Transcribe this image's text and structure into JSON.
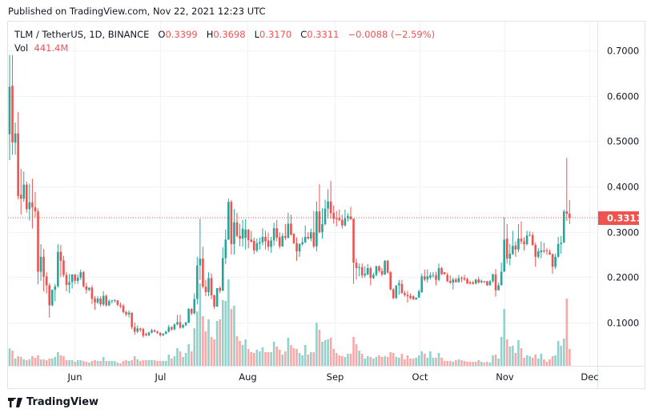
{
  "published": "Published on TradingView.com, Nov 22, 2021 12:23 UTC",
  "legend": {
    "symbol": "TLM / TetherUS, 1D, BINANCE",
    "o_label": "O",
    "o": "0.3399",
    "h_label": "H",
    "h": "0.3698",
    "l_label": "L",
    "l": "0.3170",
    "c_label": "C",
    "c": "0.3311",
    "change": "−0.0088 (−2.59%)",
    "vol_label": "Vol",
    "vol": "441.4M"
  },
  "footer": {
    "brand": "TradingView"
  },
  "colors": {
    "up": "#26a69a",
    "down": "#ef5350",
    "up_volume": "#93d2cc",
    "down_volume": "#f7a9a7",
    "grid": "#f0f3fa",
    "last_price": "#ef5350"
  },
  "chart_data": {
    "type": "candlestick",
    "symbol": "TLM / TetherUS",
    "interval": "1D",
    "ylim": [
      0.03,
      0.76
    ],
    "y_ticks": [
      "0.7000",
      "0.6000",
      "0.5000",
      "0.4000",
      "0.3000",
      "0.2000",
      "0.1000"
    ],
    "y_tick_values": [
      0.7,
      0.6,
      0.5,
      0.4,
      0.3,
      0.2,
      0.1
    ],
    "x_ticks": [
      "Jun",
      "Jul",
      "Aug",
      "Sep",
      "Oct",
      "Nov",
      "Dec"
    ],
    "last_price": 0.3311,
    "last_price_label": "0.3311",
    "grid": true,
    "candle_fields": [
      "open",
      "high",
      "low",
      "close",
      "volume_M"
    ],
    "candles": [
      [
        0.515,
        0.69,
        0.458,
        0.62,
        456
      ],
      [
        0.622,
        0.69,
        0.47,
        0.497,
        399
      ],
      [
        0.497,
        0.541,
        0.47,
        0.517,
        189
      ],
      [
        0.517,
        0.564,
        0.372,
        0.379,
        252
      ],
      [
        0.382,
        0.439,
        0.338,
        0.373,
        231
      ],
      [
        0.373,
        0.433,
        0.366,
        0.404,
        168
      ],
      [
        0.404,
        0.411,
        0.342,
        0.35,
        147
      ],
      [
        0.35,
        0.406,
        0.325,
        0.365,
        168
      ],
      [
        0.365,
        0.417,
        0.307,
        0.354,
        252
      ],
      [
        0.354,
        0.388,
        0.332,
        0.345,
        210
      ],
      [
        0.345,
        0.352,
        0.184,
        0.212,
        273
      ],
      [
        0.212,
        0.273,
        0.192,
        0.245,
        168
      ],
      [
        0.245,
        0.262,
        0.169,
        0.201,
        168
      ],
      [
        0.202,
        0.211,
        0.164,
        0.182,
        147
      ],
      [
        0.182,
        0.187,
        0.111,
        0.138,
        189
      ],
      [
        0.138,
        0.173,
        0.136,
        0.172,
        189
      ],
      [
        0.172,
        0.185,
        0.147,
        0.18,
        231
      ],
      [
        0.18,
        0.273,
        0.177,
        0.256,
        357
      ],
      [
        0.256,
        0.271,
        0.2,
        0.236,
        273
      ],
      [
        0.237,
        0.247,
        0.2,
        0.205,
        252
      ],
      [
        0.205,
        0.211,
        0.169,
        0.183,
        147
      ],
      [
        0.183,
        0.207,
        0.165,
        0.189,
        147
      ],
      [
        0.189,
        0.207,
        0.175,
        0.206,
        147
      ],
      [
        0.206,
        0.207,
        0.185,
        0.192,
        105
      ],
      [
        0.192,
        0.206,
        0.185,
        0.199,
        147
      ],
      [
        0.199,
        0.217,
        0.194,
        0.211,
        147
      ],
      [
        0.211,
        0.214,
        0.177,
        0.18,
        126
      ],
      [
        0.18,
        0.188,
        0.164,
        0.172,
        105
      ],
      [
        0.172,
        0.177,
        0.169,
        0.177,
        84
      ],
      [
        0.177,
        0.182,
        0.141,
        0.152,
        126
      ],
      [
        0.153,
        0.158,
        0.128,
        0.144,
        147
      ],
      [
        0.144,
        0.158,
        0.141,
        0.153,
        126
      ],
      [
        0.153,
        0.158,
        0.135,
        0.14,
        126
      ],
      [
        0.14,
        0.169,
        0.136,
        0.159,
        231
      ],
      [
        0.159,
        0.162,
        0.135,
        0.138,
        126
      ],
      [
        0.138,
        0.151,
        0.136,
        0.147,
        126
      ],
      [
        0.147,
        0.149,
        0.142,
        0.149,
        126
      ],
      [
        0.149,
        0.151,
        0.144,
        0.15,
        126
      ],
      [
        0.149,
        0.149,
        0.136,
        0.139,
        84
      ],
      [
        0.139,
        0.144,
        0.132,
        0.136,
        63
      ],
      [
        0.137,
        0.141,
        0.12,
        0.123,
        126
      ],
      [
        0.123,
        0.126,
        0.114,
        0.118,
        147
      ],
      [
        0.118,
        0.127,
        0.111,
        0.122,
        126
      ],
      [
        0.122,
        0.122,
        0.085,
        0.09,
        147
      ],
      [
        0.09,
        0.1,
        0.073,
        0.08,
        252
      ],
      [
        0.08,
        0.094,
        0.077,
        0.087,
        168
      ],
      [
        0.087,
        0.089,
        0.079,
        0.084,
        126
      ],
      [
        0.086,
        0.088,
        0.067,
        0.071,
        147
      ],
      [
        0.075,
        0.078,
        0.07,
        0.072,
        147
      ],
      [
        0.072,
        0.08,
        0.07,
        0.078,
        147
      ],
      [
        0.078,
        0.086,
        0.076,
        0.083,
        147
      ],
      [
        0.083,
        0.085,
        0.078,
        0.08,
        147
      ],
      [
        0.08,
        0.082,
        0.075,
        0.077,
        126
      ],
      [
        0.077,
        0.079,
        0.069,
        0.072,
        126
      ],
      [
        0.072,
        0.077,
        0.07,
        0.075,
        126
      ],
      [
        0.075,
        0.082,
        0.074,
        0.08,
        126
      ],
      [
        0.08,
        0.095,
        0.078,
        0.09,
        294
      ],
      [
        0.09,
        0.092,
        0.082,
        0.085,
        189
      ],
      [
        0.085,
        0.098,
        0.083,
        0.096,
        252
      ],
      [
        0.096,
        0.117,
        0.094,
        0.101,
        462
      ],
      [
        0.101,
        0.117,
        0.086,
        0.089,
        378
      ],
      [
        0.089,
        0.097,
        0.087,
        0.094,
        231
      ],
      [
        0.094,
        0.102,
        0.092,
        0.1,
        336
      ],
      [
        0.1,
        0.132,
        0.098,
        0.13,
        567
      ],
      [
        0.13,
        0.132,
        0.116,
        0.12,
        378
      ],
      [
        0.12,
        0.164,
        0.118,
        0.152,
        987
      ],
      [
        0.152,
        0.245,
        0.14,
        0.226,
        1428
      ],
      [
        0.226,
        0.329,
        0.194,
        0.241,
        2163
      ],
      [
        0.241,
        0.267,
        0.175,
        0.179,
        1302
      ],
      [
        0.179,
        0.194,
        0.158,
        0.167,
        903
      ],
      [
        0.167,
        0.211,
        0.158,
        0.198,
        1218
      ],
      [
        0.198,
        0.208,
        0.152,
        0.16,
        756
      ],
      [
        0.16,
        0.162,
        0.13,
        0.135,
        693
      ],
      [
        0.135,
        0.176,
        0.135,
        0.176,
        1176
      ],
      [
        0.176,
        0.18,
        0.165,
        0.17,
        1218
      ],
      [
        0.17,
        0.266,
        0.17,
        0.242,
        1722
      ],
      [
        0.242,
        0.305,
        0.229,
        0.283,
        1701
      ],
      [
        0.283,
        0.373,
        0.282,
        0.366,
        2268
      ],
      [
        0.366,
        0.37,
        0.25,
        0.273,
        1491
      ],
      [
        0.273,
        0.35,
        0.25,
        0.321,
        1575
      ],
      [
        0.321,
        0.342,
        0.288,
        0.291,
        777
      ],
      [
        0.291,
        0.318,
        0.268,
        0.285,
        651
      ],
      [
        0.285,
        0.326,
        0.267,
        0.307,
        546
      ],
      [
        0.287,
        0.328,
        0.261,
        0.305,
        693
      ],
      [
        0.305,
        0.306,
        0.264,
        0.282,
        441
      ],
      [
        0.283,
        0.302,
        0.277,
        0.278,
        357
      ],
      [
        0.28,
        0.287,
        0.251,
        0.259,
        336
      ],
      [
        0.259,
        0.285,
        0.255,
        0.275,
        420
      ],
      [
        0.274,
        0.287,
        0.261,
        0.277,
        378
      ],
      [
        0.277,
        0.308,
        0.27,
        0.289,
        483
      ],
      [
        0.289,
        0.302,
        0.261,
        0.279,
        357
      ],
      [
        0.281,
        0.298,
        0.258,
        0.267,
        357
      ],
      [
        0.267,
        0.289,
        0.254,
        0.281,
        357
      ],
      [
        0.281,
        0.32,
        0.269,
        0.308,
        630
      ],
      [
        0.308,
        0.326,
        0.279,
        0.287,
        504
      ],
      [
        0.288,
        0.299,
        0.263,
        0.268,
        420
      ],
      [
        0.268,
        0.297,
        0.267,
        0.291,
        294
      ],
      [
        0.291,
        0.317,
        0.282,
        0.287,
        378
      ],
      [
        0.287,
        0.342,
        0.285,
        0.318,
        735
      ],
      [
        0.318,
        0.338,
        0.291,
        0.294,
        546
      ],
      [
        0.296,
        0.296,
        0.273,
        0.275,
        462
      ],
      [
        0.275,
        0.288,
        0.236,
        0.257,
        441
      ],
      [
        0.257,
        0.275,
        0.245,
        0.273,
        336
      ],
      [
        0.273,
        0.288,
        0.269,
        0.277,
        273
      ],
      [
        0.277,
        0.314,
        0.275,
        0.289,
        546
      ],
      [
        0.289,
        0.299,
        0.283,
        0.285,
        294
      ],
      [
        0.285,
        0.307,
        0.279,
        0.299,
        357
      ],
      [
        0.299,
        0.346,
        0.264,
        0.268,
        357
      ],
      [
        0.268,
        0.367,
        0.257,
        0.345,
        1134
      ],
      [
        0.345,
        0.405,
        0.297,
        0.299,
        945
      ],
      [
        0.299,
        0.352,
        0.285,
        0.317,
        630
      ],
      [
        0.317,
        0.371,
        0.314,
        0.351,
        672
      ],
      [
        0.351,
        0.394,
        0.329,
        0.367,
        693
      ],
      [
        0.367,
        0.412,
        0.329,
        0.341,
        735
      ],
      [
        0.342,
        0.358,
        0.318,
        0.329,
        441
      ],
      [
        0.33,
        0.346,
        0.312,
        0.328,
        336
      ],
      [
        0.33,
        0.349,
        0.323,
        0.326,
        273
      ],
      [
        0.326,
        0.338,
        0.307,
        0.314,
        252
      ],
      [
        0.314,
        0.349,
        0.312,
        0.33,
        231
      ],
      [
        0.33,
        0.341,
        0.323,
        0.335,
        315
      ],
      [
        0.334,
        0.355,
        0.326,
        0.328,
        315
      ],
      [
        0.329,
        0.329,
        0.185,
        0.232,
        756
      ],
      [
        0.232,
        0.241,
        0.195,
        0.22,
        567
      ],
      [
        0.22,
        0.23,
        0.202,
        0.222,
        399
      ],
      [
        0.222,
        0.23,
        0.198,
        0.204,
        315
      ],
      [
        0.204,
        0.224,
        0.199,
        0.208,
        189
      ],
      [
        0.206,
        0.229,
        0.205,
        0.22,
        252
      ],
      [
        0.22,
        0.224,
        0.182,
        0.198,
        231
      ],
      [
        0.198,
        0.21,
        0.196,
        0.205,
        189
      ],
      [
        0.205,
        0.226,
        0.202,
        0.224,
        231
      ],
      [
        0.224,
        0.226,
        0.21,
        0.214,
        273
      ],
      [
        0.214,
        0.22,
        0.202,
        0.206,
        231
      ],
      [
        0.206,
        0.238,
        0.205,
        0.236,
        252
      ],
      [
        0.236,
        0.238,
        0.208,
        0.21,
        231
      ],
      [
        0.211,
        0.214,
        0.171,
        0.173,
        357
      ],
      [
        0.173,
        0.176,
        0.151,
        0.154,
        336
      ],
      [
        0.154,
        0.182,
        0.152,
        0.182,
        231
      ],
      [
        0.182,
        0.194,
        0.161,
        0.187,
        210
      ],
      [
        0.185,
        0.194,
        0.164,
        0.165,
        315
      ],
      [
        0.165,
        0.17,
        0.157,
        0.161,
        168
      ],
      [
        0.161,
        0.17,
        0.144,
        0.158,
        273
      ],
      [
        0.159,
        0.164,
        0.151,
        0.154,
        189
      ],
      [
        0.158,
        0.16,
        0.15,
        0.151,
        189
      ],
      [
        0.151,
        0.155,
        0.15,
        0.155,
        210
      ],
      [
        0.155,
        0.173,
        0.155,
        0.169,
        273
      ],
      [
        0.167,
        0.208,
        0.165,
        0.202,
        378
      ],
      [
        0.202,
        0.217,
        0.191,
        0.195,
        315
      ],
      [
        0.195,
        0.217,
        0.188,
        0.202,
        210
      ],
      [
        0.199,
        0.211,
        0.195,
        0.204,
        378
      ],
      [
        0.204,
        0.211,
        0.199,
        0.205,
        210
      ],
      [
        0.204,
        0.212,
        0.182,
        0.194,
        210
      ],
      [
        0.194,
        0.23,
        0.191,
        0.22,
        336
      ],
      [
        0.22,
        0.223,
        0.204,
        0.207,
        210
      ],
      [
        0.211,
        0.211,
        0.205,
        0.207,
        126
      ],
      [
        0.205,
        0.21,
        0.189,
        0.191,
        126
      ],
      [
        0.192,
        0.204,
        0.185,
        0.188,
        126
      ],
      [
        0.188,
        0.199,
        0.173,
        0.195,
        105
      ],
      [
        0.195,
        0.199,
        0.188,
        0.189,
        147
      ],
      [
        0.189,
        0.205,
        0.188,
        0.198,
        168
      ],
      [
        0.198,
        0.202,
        0.189,
        0.197,
        147
      ],
      [
        0.198,
        0.205,
        0.192,
        0.195,
        126
      ],
      [
        0.196,
        0.199,
        0.185,
        0.186,
        105
      ],
      [
        0.189,
        0.192,
        0.184,
        0.186,
        105
      ],
      [
        0.188,
        0.192,
        0.184,
        0.185,
        105
      ],
      [
        0.186,
        0.196,
        0.184,
        0.195,
        105
      ],
      [
        0.195,
        0.201,
        0.186,
        0.188,
        147
      ],
      [
        0.189,
        0.195,
        0.186,
        0.192,
        105
      ],
      [
        0.191,
        0.192,
        0.187,
        0.189,
        84
      ],
      [
        0.191,
        0.192,
        0.181,
        0.182,
        105
      ],
      [
        0.182,
        0.194,
        0.182,
        0.191,
        84
      ],
      [
        0.191,
        0.208,
        0.188,
        0.206,
        273
      ],
      [
        0.206,
        0.218,
        0.157,
        0.171,
        294
      ],
      [
        0.171,
        0.188,
        0.171,
        0.182,
        189
      ],
      [
        0.182,
        0.232,
        0.182,
        0.212,
        756
      ],
      [
        0.212,
        0.332,
        0.212,
        0.283,
        1491
      ],
      [
        0.285,
        0.317,
        0.23,
        0.241,
        693
      ],
      [
        0.241,
        0.273,
        0.226,
        0.252,
        504
      ],
      [
        0.251,
        0.302,
        0.249,
        0.269,
        525
      ],
      [
        0.27,
        0.279,
        0.245,
        0.261,
        336
      ],
      [
        0.261,
        0.317,
        0.255,
        0.285,
        672
      ],
      [
        0.285,
        0.323,
        0.273,
        0.279,
        462
      ],
      [
        0.279,
        0.288,
        0.259,
        0.273,
        210
      ],
      [
        0.273,
        0.302,
        0.27,
        0.292,
        273
      ],
      [
        0.292,
        0.301,
        0.29,
        0.293,
        252
      ],
      [
        0.293,
        0.299,
        0.269,
        0.271,
        210
      ],
      [
        0.271,
        0.276,
        0.223,
        0.245,
        294
      ],
      [
        0.245,
        0.264,
        0.241,
        0.257,
        189
      ],
      [
        0.255,
        0.279,
        0.242,
        0.259,
        315
      ],
      [
        0.259,
        0.276,
        0.253,
        0.257,
        168
      ],
      [
        0.259,
        0.264,
        0.249,
        0.258,
        105
      ],
      [
        0.255,
        0.261,
        0.249,
        0.25,
        168
      ],
      [
        0.251,
        0.252,
        0.208,
        0.223,
        252
      ],
      [
        0.223,
        0.252,
        0.218,
        0.245,
        273
      ],
      [
        0.245,
        0.289,
        0.243,
        0.273,
        651
      ],
      [
        0.273,
        0.291,
        0.252,
        0.276,
        525
      ],
      [
        0.276,
        0.349,
        0.276,
        0.345,
        714
      ],
      [
        0.345,
        0.463,
        0.324,
        0.3399,
        1764
      ],
      [
        0.3399,
        0.3698,
        0.317,
        0.3311,
        441.4
      ]
    ]
  }
}
